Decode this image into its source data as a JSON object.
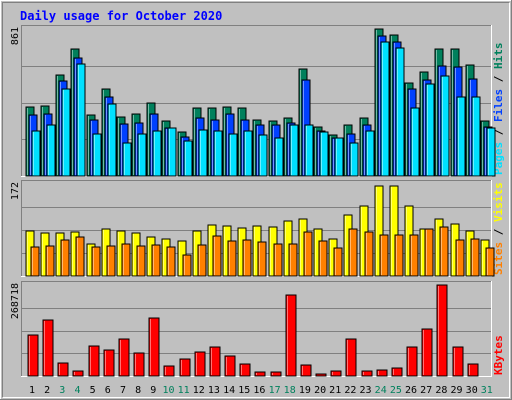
{
  "title": "Daily usage for October 2020",
  "colors": {
    "background": "#c0c0c0",
    "title": "#0000ff",
    "hits": "#00805c",
    "files": "#0040ff",
    "pages": "#00e0ff",
    "visits": "#ffff00",
    "sites": "#ff8000",
    "kbytes": "#ff0000",
    "weekday_label": "#000000",
    "weekend_label": "#00805c"
  },
  "chart_data": [
    {
      "type": "bar",
      "name": "hits-files-pages",
      "ymax_label": "861",
      "ylim": [
        0,
        861
      ],
      "right_labels": [
        "Pages",
        "Files",
        "Hits"
      ],
      "categories": [
        "1",
        "2",
        "3",
        "4",
        "5",
        "6",
        "7",
        "8",
        "9",
        "10",
        "11",
        "12",
        "13",
        "14",
        "15",
        "16",
        "17",
        "18",
        "19",
        "20",
        "21",
        "22",
        "23",
        "24",
        "25",
        "26",
        "27",
        "28",
        "29",
        "30",
        "31"
      ],
      "series": [
        {
          "name": "Hits",
          "values": [
            405,
            412,
            591,
            741,
            355,
            508,
            346,
            365,
            430,
            325,
            256,
            397,
            397,
            405,
            397,
            330,
            322,
            339,
            628,
            289,
            239,
            297,
            339,
            861,
            826,
            545,
            612,
            741,
            741,
            651,
            322
          ]
        },
        {
          "name": "Files",
          "values": [
            355,
            363,
            554,
            693,
            330,
            463,
            305,
            313,
            363,
            280,
            231,
            340,
            330,
            365,
            330,
            297,
            297,
            313,
            560,
            264,
            223,
            248,
            297,
            818,
            784,
            508,
            560,
            643,
            637,
            568,
            289
          ]
        },
        {
          "name": "Pages",
          "values": [
            264,
            297,
            508,
            656,
            248,
            420,
            191,
            248,
            264,
            280,
            206,
            272,
            264,
            248,
            264,
            239,
            223,
            297,
            297,
            256,
            223,
            191,
            264,
            784,
            750,
            397,
            537,
            584,
            465,
            465,
            280
          ]
        }
      ]
    },
    {
      "type": "bar",
      "name": "visits-sites",
      "ymax_label": "172",
      "ylim": [
        0,
        172
      ],
      "right_labels": [
        "Sites",
        "Visits"
      ],
      "categories": [
        "1",
        "2",
        "3",
        "4",
        "5",
        "6",
        "7",
        "8",
        "9",
        "10",
        "11",
        "12",
        "13",
        "14",
        "15",
        "16",
        "17",
        "18",
        "19",
        "20",
        "21",
        "22",
        "23",
        "24",
        "25",
        "26",
        "27",
        "28",
        "29",
        "30",
        "31"
      ],
      "series": [
        {
          "name": "Visits",
          "values": [
            85,
            80,
            80,
            82,
            60,
            88,
            84,
            80,
            72,
            70,
            66,
            85,
            96,
            94,
            90,
            94,
            92,
            102,
            106,
            88,
            70,
            114,
            130,
            169,
            169,
            131,
            88,
            106,
            98,
            84,
            68
          ]
        },
        {
          "name": "Sites",
          "values": [
            54,
            56,
            68,
            72,
            54,
            56,
            60,
            56,
            58,
            54,
            40,
            58,
            74,
            66,
            68,
            64,
            60,
            60,
            82,
            66,
            52,
            88,
            82,
            76,
            76,
            76,
            88,
            92,
            68,
            70,
            52
          ]
        }
      ]
    },
    {
      "type": "bar",
      "name": "kbytes",
      "ymax_label": "268718",
      "ylim": [
        0,
        268718
      ],
      "right_labels": [
        "KBytes"
      ],
      "categories": [
        "1",
        "2",
        "3",
        "4",
        "5",
        "6",
        "7",
        "8",
        "9",
        "10",
        "11",
        "12",
        "13",
        "14",
        "15",
        "16",
        "17",
        "18",
        "19",
        "20",
        "21",
        "22",
        "23",
        "24",
        "25",
        "26",
        "27",
        "28",
        "29",
        "30",
        "31"
      ],
      "series": [
        {
          "name": "KBytes",
          "values": [
            120000,
            165000,
            37000,
            14000,
            88000,
            78000,
            110000,
            68000,
            170000,
            30000,
            50000,
            72000,
            85000,
            59000,
            35000,
            12000,
            11000,
            240000,
            32000,
            5000,
            15000,
            110000,
            16000,
            17000,
            25000,
            86000,
            138000,
            268718,
            86000,
            35000,
            0
          ]
        }
      ]
    }
  ],
  "days": [
    {
      "label": "1",
      "weekend": false
    },
    {
      "label": "2",
      "weekend": false
    },
    {
      "label": "3",
      "weekend": true
    },
    {
      "label": "4",
      "weekend": true
    },
    {
      "label": "5",
      "weekend": false
    },
    {
      "label": "6",
      "weekend": false
    },
    {
      "label": "7",
      "weekend": false
    },
    {
      "label": "8",
      "weekend": false
    },
    {
      "label": "9",
      "weekend": false
    },
    {
      "label": "10",
      "weekend": true
    },
    {
      "label": "11",
      "weekend": true
    },
    {
      "label": "12",
      "weekend": false
    },
    {
      "label": "13",
      "weekend": false
    },
    {
      "label": "14",
      "weekend": false
    },
    {
      "label": "15",
      "weekend": false
    },
    {
      "label": "16",
      "weekend": false
    },
    {
      "label": "17",
      "weekend": true
    },
    {
      "label": "18",
      "weekend": true
    },
    {
      "label": "19",
      "weekend": false
    },
    {
      "label": "20",
      "weekend": false
    },
    {
      "label": "21",
      "weekend": false
    },
    {
      "label": "22",
      "weekend": false
    },
    {
      "label": "23",
      "weekend": false
    },
    {
      "label": "24",
      "weekend": true
    },
    {
      "label": "25",
      "weekend": true
    },
    {
      "label": "26",
      "weekend": false
    },
    {
      "label": "27",
      "weekend": false
    },
    {
      "label": "28",
      "weekend": false
    },
    {
      "label": "29",
      "weekend": false
    },
    {
      "label": "30",
      "weekend": false
    },
    {
      "label": "31",
      "weekend": true
    }
  ]
}
